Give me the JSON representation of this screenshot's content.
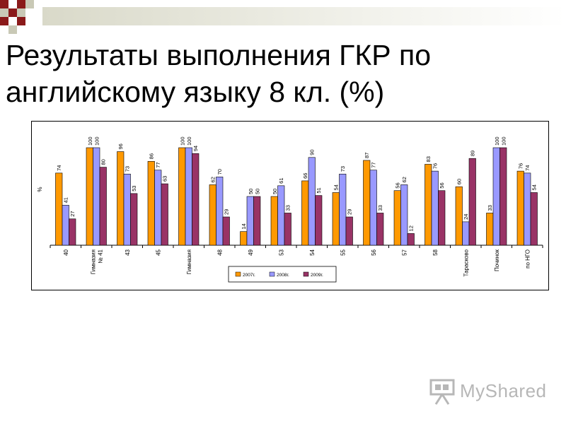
{
  "slide": {
    "title": "Результаты выполнения ГКР по английскому языку 8 кл. (%)",
    "watermark": "MyShared"
  },
  "chart_data": {
    "type": "bar",
    "ylabel": "%",
    "ylim": [
      0,
      100
    ],
    "grid": false,
    "legend_position": "bottom",
    "categories": [
      "40",
      "Гимназия № 41",
      "43",
      "45",
      "Гимназия",
      "48",
      "49",
      "53",
      "54",
      "55",
      "56",
      "57",
      "58",
      "Тарасково",
      "Починок",
      "по НГО"
    ],
    "series": [
      {
        "name": "2007г.",
        "color": "#ff9900",
        "values": [
          74,
          100,
          96,
          86,
          100,
          62,
          14,
          50,
          66,
          54,
          87,
          56,
          83,
          60,
          33,
          76
        ]
      },
      {
        "name": "2008г.",
        "color": "#9999ff",
        "values": [
          41,
          100,
          73,
          77,
          100,
          70,
          50,
          61,
          90,
          73,
          77,
          62,
          76,
          24,
          100,
          74
        ]
      },
      {
        "name": "2009г.",
        "color": "#993366",
        "values": [
          27,
          80,
          53,
          63,
          94,
          29,
          50,
          33,
          51,
          29,
          33,
          12,
          56,
          89,
          100,
          54
        ]
      }
    ]
  }
}
